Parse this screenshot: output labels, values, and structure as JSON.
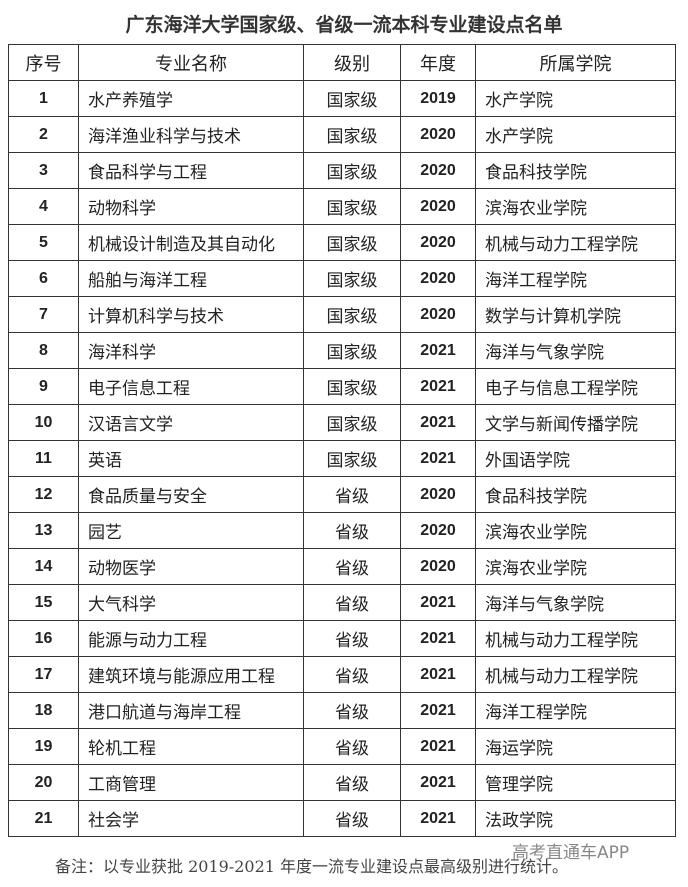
{
  "title": "广东海洋大学国家级、省级一流本科专业建设点名单",
  "headers": [
    "序号",
    "专业名称",
    "级别",
    "年度",
    "所属学院"
  ],
  "rows": [
    [
      "1",
      "水产养殖学",
      "国家级",
      "2019",
      "水产学院"
    ],
    [
      "2",
      "海洋渔业科学与技术",
      "国家级",
      "2020",
      "水产学院"
    ],
    [
      "3",
      "食品科学与工程",
      "国家级",
      "2020",
      "食品科技学院"
    ],
    [
      "4",
      "动物科学",
      "国家级",
      "2020",
      "滨海农业学院"
    ],
    [
      "5",
      "机械设计制造及其自动化",
      "国家级",
      "2020",
      "机械与动力工程学院"
    ],
    [
      "6",
      "船舶与海洋工程",
      "国家级",
      "2020",
      "海洋工程学院"
    ],
    [
      "7",
      "计算机科学与技术",
      "国家级",
      "2020",
      "数学与计算机学院"
    ],
    [
      "8",
      "海洋科学",
      "国家级",
      "2021",
      "海洋与气象学院"
    ],
    [
      "9",
      "电子信息工程",
      "国家级",
      "2021",
      "电子与信息工程学院"
    ],
    [
      "10",
      "汉语言文学",
      "国家级",
      "2021",
      "文学与新闻传播学院"
    ],
    [
      "11",
      "英语",
      "国家级",
      "2021",
      "外国语学院"
    ],
    [
      "12",
      "食品质量与安全",
      "省级",
      "2020",
      "食品科技学院"
    ],
    [
      "13",
      "园艺",
      "省级",
      "2020",
      "滨海农业学院"
    ],
    [
      "14",
      "动物医学",
      "省级",
      "2020",
      "滨海农业学院"
    ],
    [
      "15",
      "大气科学",
      "省级",
      "2021",
      "海洋与气象学院"
    ],
    [
      "16",
      "能源与动力工程",
      "省级",
      "2021",
      "机械与动力工程学院"
    ],
    [
      "17",
      "建筑环境与能源应用工程",
      "省级",
      "2021",
      "机械与动力工程学院"
    ],
    [
      "18",
      "港口航道与海岸工程",
      "省级",
      "2021",
      "海洋工程学院"
    ],
    [
      "19",
      "轮机工程",
      "省级",
      "2021",
      "海运学院"
    ],
    [
      "20",
      "工商管理",
      "省级",
      "2021",
      "管理学院"
    ],
    [
      "21",
      "社会学",
      "省级",
      "2021",
      "法政学院"
    ]
  ],
  "note": "备注：以专业获批 2019-2021 年度一流专业建设点最高级别进行统计。",
  "watermark": "高考直通车APP"
}
